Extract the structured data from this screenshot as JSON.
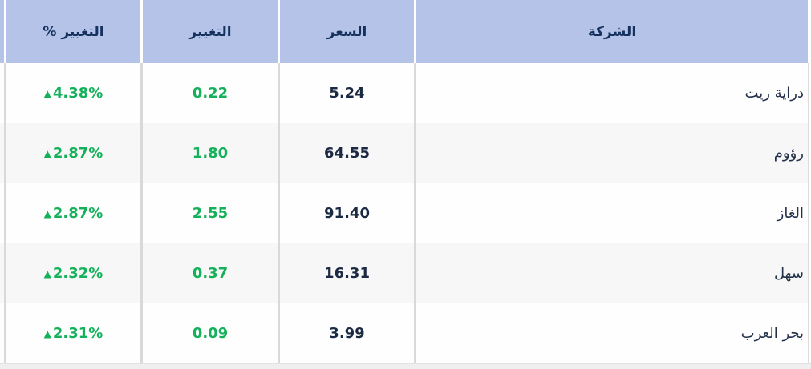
{
  "table": {
    "columns": [
      {
        "id": "company",
        "label": "الشركة"
      },
      {
        "id": "price",
        "label": "السعر"
      },
      {
        "id": "change",
        "label": "التغيير"
      },
      {
        "id": "change_pct",
        "label": "التغيير %"
      }
    ],
    "rows": [
      {
        "company": "دراية ريت",
        "price": "5.24",
        "change": "0.22",
        "change_pct": "4.38%",
        "direction": "up"
      },
      {
        "company": "رؤوم",
        "price": "64.55",
        "change": "1.80",
        "change_pct": "2.87%",
        "direction": "up"
      },
      {
        "company": "الغاز",
        "price": "91.40",
        "change": "2.55",
        "change_pct": "2.87%",
        "direction": "up"
      },
      {
        "company": "سهل",
        "price": "16.31",
        "change": "0.37",
        "change_pct": "2.32%",
        "direction": "up"
      },
      {
        "company": "بحر العرب",
        "price": "3.99",
        "change": "0.09",
        "change_pct": "2.31%",
        "direction": "up"
      }
    ],
    "icons": {
      "up_triangle": "▲"
    },
    "colors": {
      "header_bg": "#b5c3e8",
      "header_text": "#15325e",
      "body_text": "#1b2a42",
      "positive_green": "#15b15a",
      "row_alt_bg": "#f7f7f7",
      "divider": "#d9d9d9",
      "scrollbar_track": "#efefef"
    }
  }
}
